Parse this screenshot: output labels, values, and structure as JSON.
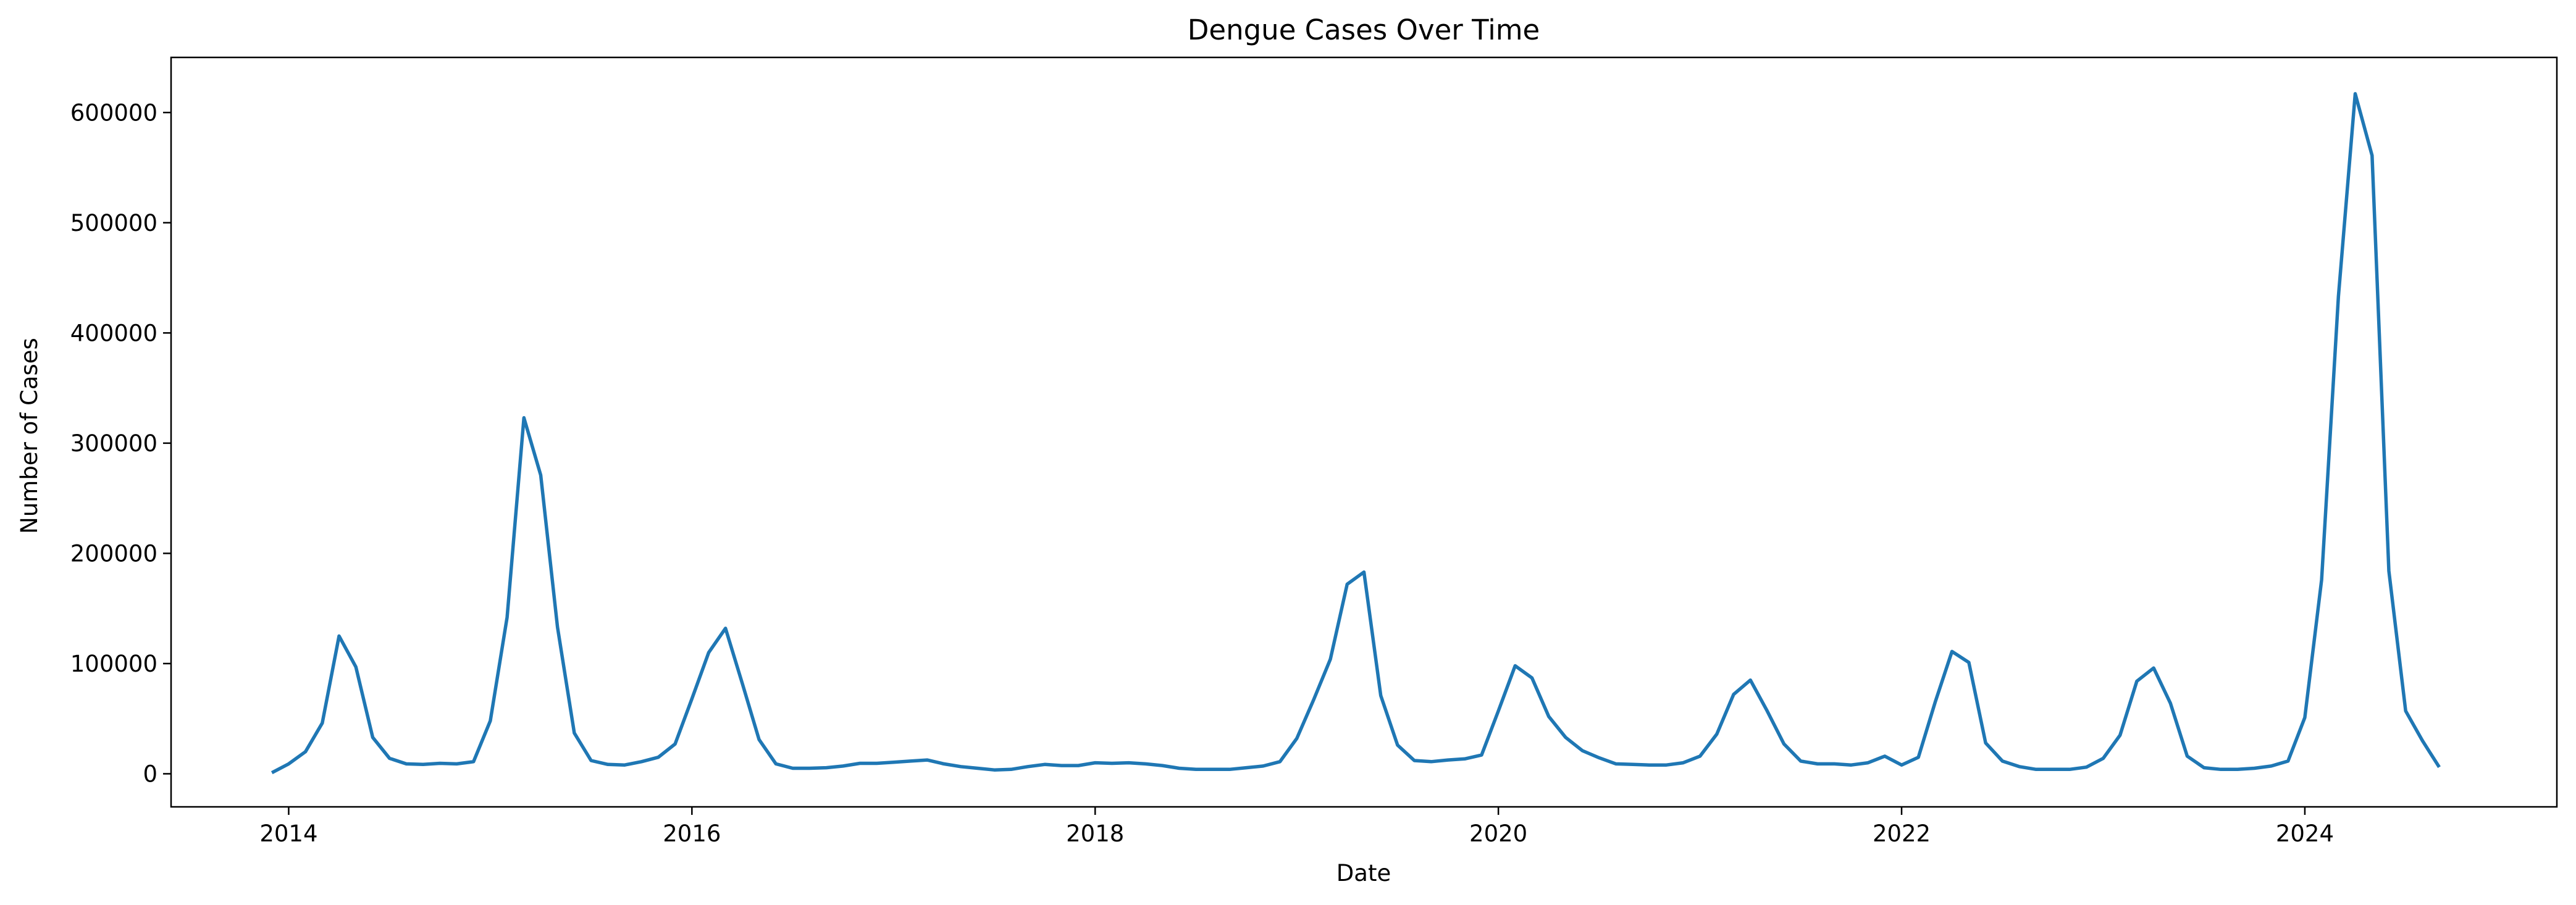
{
  "chart_data": {
    "type": "line",
    "title": "Dengue Cases Over Time",
    "xlabel": "Date",
    "ylabel": "Number of Cases",
    "x_axis_type": "time",
    "xlim": [
      "2013-06-01",
      "2025-04-01"
    ],
    "ylim": [
      -30000,
      650000
    ],
    "x_ticks": [
      "2014",
      "2016",
      "2018",
      "2020",
      "2022",
      "2024"
    ],
    "y_ticks": [
      0,
      100000,
      200000,
      300000,
      400000,
      500000,
      600000
    ],
    "grid": false,
    "legend": "none",
    "line_color": "#1f77b4",
    "series": [
      {
        "x": [
          "2013-12",
          "2014-01",
          "2014-02",
          "2014-03",
          "2014-04",
          "2014-05",
          "2014-06",
          "2014-07",
          "2014-08",
          "2014-09",
          "2014-10",
          "2014-11",
          "2014-12",
          "2015-01",
          "2015-02",
          "2015-03",
          "2015-04",
          "2015-05",
          "2015-06",
          "2015-07",
          "2015-08",
          "2015-09",
          "2015-10",
          "2015-11",
          "2015-12",
          "2016-01",
          "2016-02",
          "2016-03",
          "2016-04",
          "2016-05",
          "2016-06",
          "2016-07",
          "2016-08",
          "2016-09",
          "2016-10",
          "2016-11",
          "2016-12",
          "2017-01",
          "2017-02",
          "2017-03",
          "2017-04",
          "2017-05",
          "2017-06",
          "2017-07",
          "2017-08",
          "2017-09",
          "2017-10",
          "2017-11",
          "2017-12",
          "2018-01",
          "2018-02",
          "2018-03",
          "2018-04",
          "2018-05",
          "2018-06",
          "2018-07",
          "2018-08",
          "2018-09",
          "2018-10",
          "2018-11",
          "2018-12",
          "2019-01",
          "2019-02",
          "2019-03",
          "2019-04",
          "2019-05",
          "2019-06",
          "2019-07",
          "2019-08",
          "2019-09",
          "2019-10",
          "2019-11",
          "2019-12",
          "2020-01",
          "2020-02",
          "2020-03",
          "2020-04",
          "2020-05",
          "2020-06",
          "2020-07",
          "2020-08",
          "2020-09",
          "2020-10",
          "2020-11",
          "2020-12",
          "2021-01",
          "2021-02",
          "2021-03",
          "2021-04",
          "2021-05",
          "2021-06",
          "2021-07",
          "2021-08",
          "2021-09",
          "2021-10",
          "2021-11",
          "2021-12",
          "2022-01",
          "2022-02",
          "2022-03",
          "2022-04",
          "2022-05",
          "2022-06",
          "2022-07",
          "2022-08",
          "2022-09",
          "2022-10",
          "2022-11",
          "2022-12",
          "2023-01",
          "2023-02",
          "2023-03",
          "2023-04",
          "2023-05",
          "2023-06",
          "2023-07",
          "2023-08",
          "2023-09",
          "2023-10",
          "2023-11",
          "2023-12",
          "2024-01",
          "2024-02",
          "2024-03",
          "2024-04",
          "2024-05",
          "2024-06",
          "2024-07",
          "2024-08",
          "2024-09"
        ],
        "values": [
          1000,
          9000,
          20000,
          46000,
          125000,
          97000,
          33000,
          14000,
          9000,
          8500,
          9500,
          9000,
          11000,
          48000,
          142000,
          323000,
          271000,
          133000,
          37000,
          12000,
          8500,
          8000,
          11000,
          15000,
          27000,
          68000,
          110000,
          132000,
          82000,
          31000,
          9000,
          5000,
          5000,
          5500,
          7000,
          9500,
          9500,
          10500,
          11500,
          12500,
          9000,
          6500,
          5000,
          3500,
          4000,
          6500,
          8500,
          7500,
          7500,
          10000,
          9500,
          10000,
          9000,
          7500,
          5000,
          4000,
          4000,
          4000,
          5500,
          7000,
          11000,
          32000,
          67000,
          104000,
          172000,
          183000,
          71000,
          26000,
          12000,
          11000,
          12500,
          13500,
          17000,
          57000,
          98000,
          87000,
          52000,
          33000,
          21000,
          14500,
          9000,
          8500,
          8000,
          8000,
          10000,
          16000,
          36000,
          72000,
          85000,
          57000,
          27000,
          11500,
          9000,
          9000,
          8000,
          10000,
          16000,
          8000,
          15000,
          65000,
          111000,
          101000,
          28000,
          11500,
          6500,
          4000,
          4000,
          4000,
          6000,
          14000,
          35000,
          84000,
          96000,
          64000,
          16000,
          5500,
          4000,
          4000,
          5000,
          7000,
          11500,
          51000,
          176000,
          433000,
          617000,
          561000,
          184000,
          57000,
          30000,
          6000
        ]
      }
    ]
  }
}
